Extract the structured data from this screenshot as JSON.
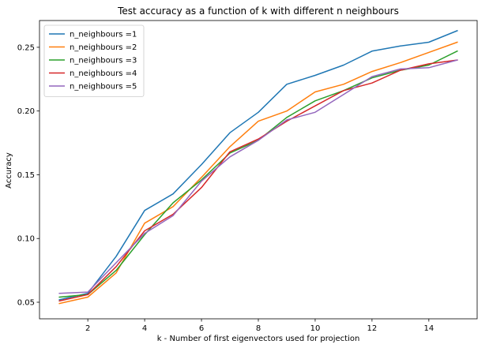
{
  "chart_data": {
    "type": "line",
    "title": "Test accuracy as a function of k with different n neighbours",
    "xlabel": "k - Number of first eigenvectors used for projection",
    "ylabel": "Accuracy",
    "xlim": [
      0.3,
      15.7
    ],
    "ylim": [
      0.037,
      0.271
    ],
    "x_ticks": [
      2,
      4,
      6,
      8,
      10,
      12,
      14
    ],
    "y_ticks": [
      0.05,
      0.1,
      0.15,
      0.2,
      0.25
    ],
    "x_tick_labels": [
      "2",
      "4",
      "6",
      "8",
      "10",
      "12",
      "14"
    ],
    "y_tick_labels": [
      "0.05",
      "0.10",
      "0.15",
      "0.20",
      "0.25"
    ],
    "legend_position": "top-left",
    "grid": false,
    "x": [
      1,
      2,
      3,
      4,
      5,
      6,
      7,
      8,
      9,
      10,
      11,
      12,
      13,
      14,
      15
    ],
    "series": [
      {
        "name": "n_neighbours =1",
        "color": "#1f77b4",
        "values": [
          0.052,
          0.057,
          0.086,
          0.122,
          0.135,
          0.158,
          0.183,
          0.199,
          0.221,
          0.228,
          0.236,
          0.247,
          0.251,
          0.254,
          0.263
        ]
      },
      {
        "name": "n_neighbours =2",
        "color": "#ff7f0e",
        "values": [
          0.049,
          0.054,
          0.073,
          0.112,
          0.125,
          0.148,
          0.172,
          0.192,
          0.2,
          0.215,
          0.221,
          0.231,
          0.238,
          0.246,
          0.254
        ]
      },
      {
        "name": "n_neighbours =3",
        "color": "#2ca02c",
        "values": [
          0.054,
          0.056,
          0.075,
          0.103,
          0.128,
          0.146,
          0.167,
          0.177,
          0.195,
          0.208,
          0.216,
          0.226,
          0.232,
          0.236,
          0.247
        ]
      },
      {
        "name": "n_neighbours =4",
        "color": "#d62728",
        "values": [
          0.051,
          0.056,
          0.078,
          0.106,
          0.119,
          0.14,
          0.168,
          0.178,
          0.192,
          0.204,
          0.216,
          0.222,
          0.232,
          0.237,
          0.24
        ]
      },
      {
        "name": "n_neighbours =5",
        "color": "#9467bd",
        "values": [
          0.057,
          0.058,
          0.081,
          0.104,
          0.118,
          0.145,
          0.164,
          0.177,
          0.193,
          0.199,
          0.213,
          0.227,
          0.233,
          0.234,
          0.24
        ]
      }
    ]
  }
}
